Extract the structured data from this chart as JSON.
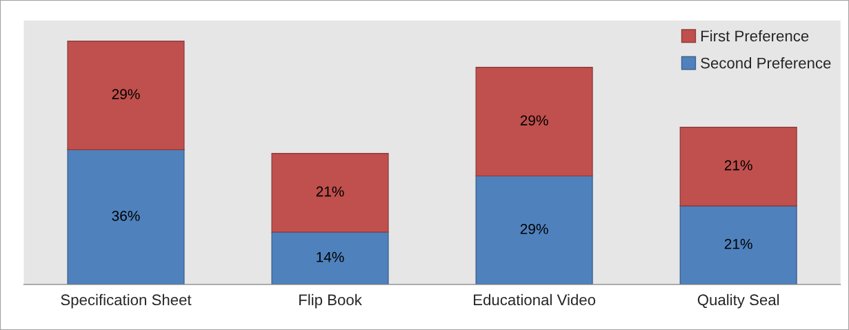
{
  "chart_data": {
    "type": "bar",
    "stacked": true,
    "categories": [
      "Specification Sheet",
      "Flip Book",
      "Educational Video",
      "Quality Seal"
    ],
    "series": [
      {
        "name": "Second Preference",
        "color": "#4f81bd",
        "values": [
          36,
          14,
          29,
          21
        ],
        "value_labels": [
          "36%",
          "14%",
          "29%",
          "21%"
        ]
      },
      {
        "name": "First Preference",
        "color": "#c0504d",
        "values": [
          29,
          21,
          29,
          21
        ],
        "value_labels": [
          "29%",
          "21%",
          "29%",
          "21%"
        ]
      }
    ],
    "legend": "top right",
    "grid": false
  }
}
